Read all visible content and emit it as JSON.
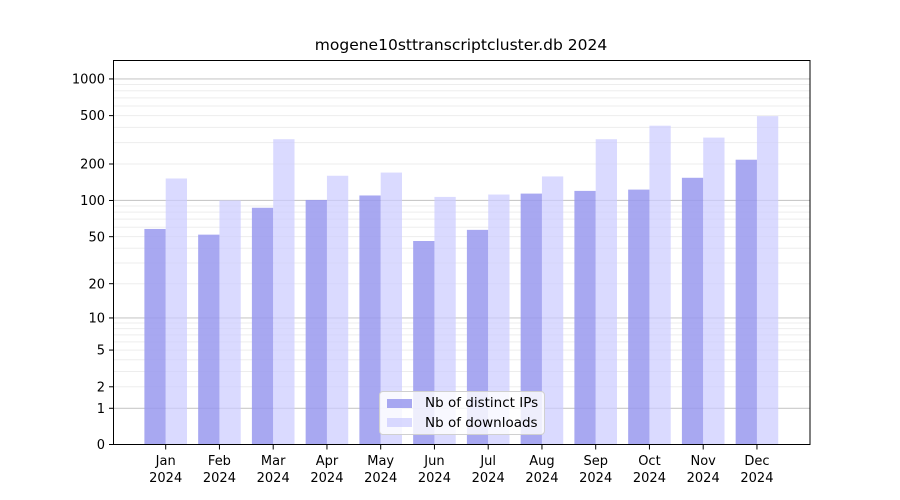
{
  "figure": {
    "title": "mogene10sttranscriptcluster.db 2024"
  },
  "chart_data": {
    "type": "bar",
    "title": "mogene10sttranscriptcluster.db 2024",
    "categories": [
      "Jan 2024",
      "Feb 2024",
      "Mar 2024",
      "Apr 2024",
      "May 2024",
      "Jun 2024",
      "Jul 2024",
      "Aug 2024",
      "Sep 2024",
      "Oct 2024",
      "Nov 2024",
      "Dec 2024"
    ],
    "series": [
      {
        "name": "Nb of distinct IPs",
        "color": "#9999ee",
        "opacity": 0.85,
        "values": [
          58,
          52,
          87,
          101,
          110,
          46,
          57,
          114,
          120,
          123,
          154,
          217
        ]
      },
      {
        "name": "Nb of downloads",
        "color": "#ccccff",
        "opacity": 0.72,
        "values": [
          152,
          100,
          320,
          160,
          170,
          107,
          112,
          158,
          320,
          413,
          330,
          495
        ]
      }
    ],
    "xlabel": "",
    "ylabel": "",
    "yscale": "log1p",
    "yticks": [
      0,
      1,
      2,
      5,
      10,
      20,
      50,
      100,
      200,
      500,
      1000
    ],
    "y_major_gridlines": [
      1,
      10,
      100,
      1000
    ],
    "ylim": [
      0,
      1400
    ],
    "grid": true,
    "legend_position": "lower center",
    "colors": {
      "grid_major": "#c9c9c9",
      "grid_minor": "#ededed",
      "axis": "#000000",
      "background": "#ffffff"
    }
  }
}
